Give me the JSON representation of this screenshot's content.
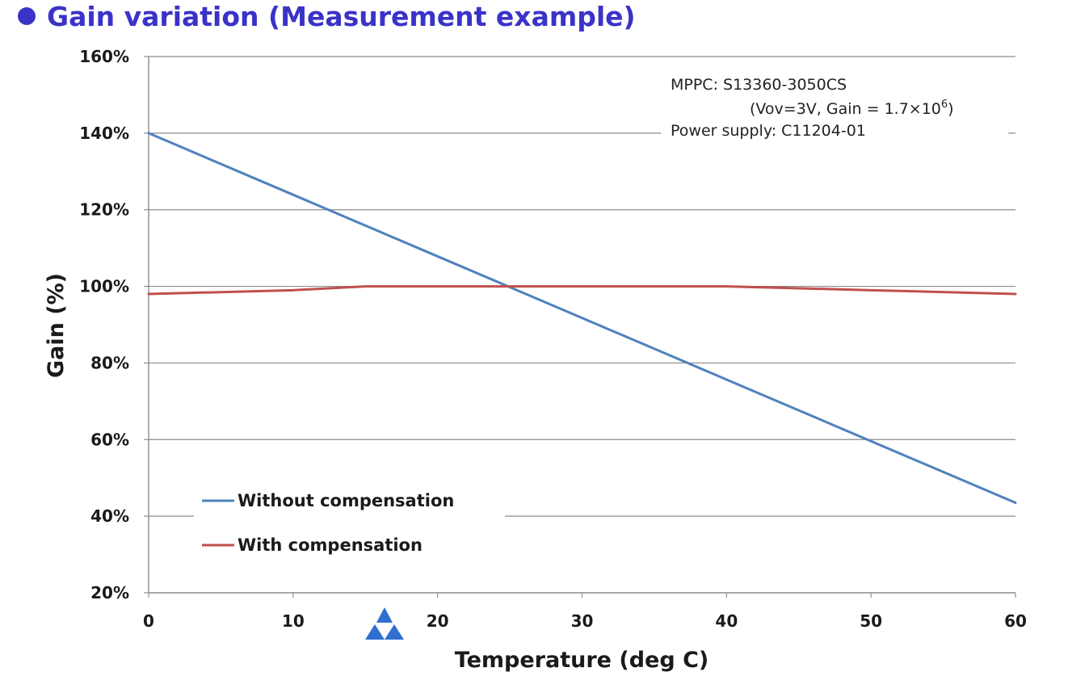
{
  "title": "Gain variation (Measurement example)",
  "colors": {
    "title": "#3a33c8",
    "without": "#4f81bd",
    "with": "#c0504d",
    "grid": "#8c8c8c",
    "logo": "#2f6fd0"
  },
  "annotation": {
    "line1": "MPPC: S13360-3050CS",
    "line2_prefix": "(Vov=3V, Gain = 1.7×10",
    "line2_exp": "6",
    "line2_suffix": ")",
    "line3": "Power supply: C11204-01"
  },
  "logo_icon": "triangle-logo-icon",
  "chart_data": {
    "type": "line",
    "title": "Gain variation (Measurement example)",
    "xlabel": "Temperature (deg C)",
    "ylabel": "Gain (%)",
    "xlim": [
      0,
      60
    ],
    "ylim": [
      20,
      160
    ],
    "x_ticks": [
      0,
      10,
      20,
      30,
      40,
      50,
      60
    ],
    "x_tick_labels": [
      "0",
      "10",
      "20",
      "30",
      "40",
      "50",
      "60"
    ],
    "y_ticks": [
      20,
      40,
      60,
      80,
      100,
      120,
      140,
      160
    ],
    "y_tick_labels": [
      "20%",
      "40%",
      "60%",
      "80%",
      "100%",
      "120%",
      "140%",
      "160%"
    ],
    "grid": true,
    "legend_position": "bottom-left",
    "series": [
      {
        "name": "Without compensation",
        "color": "#4f81bd",
        "x": [
          0,
          60
        ],
        "y": [
          140,
          43.5
        ]
      },
      {
        "name": "With compensation",
        "color": "#c0504d",
        "x": [
          0,
          10,
          15,
          25,
          40,
          50,
          60
        ],
        "y": [
          98,
          99,
          100,
          100,
          100,
          99,
          98
        ]
      }
    ]
  }
}
